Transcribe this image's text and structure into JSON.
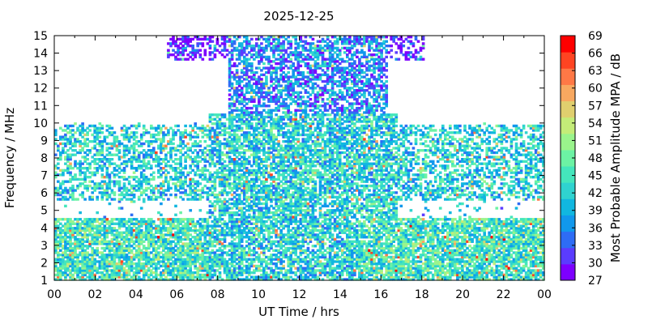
{
  "chart_data": {
    "type": "heatmap",
    "title": "2025-12-25",
    "xlabel": "UT Time / hrs",
    "ylabel": "Frequency / MHz",
    "xlim": [
      0,
      24
    ],
    "ylim": [
      1,
      15
    ],
    "x_ticks": [
      "00",
      "02",
      "04",
      "06",
      "08",
      "10",
      "12",
      "14",
      "16",
      "18",
      "20",
      "22",
      "00"
    ],
    "y_ticks": [
      "1",
      "2",
      "3",
      "4",
      "5",
      "6",
      "7",
      "8",
      "9",
      "10",
      "11",
      "12",
      "13",
      "14",
      "15"
    ],
    "colorbar": {
      "label": "Most Probable Amplitude MPA / dB",
      "range": [
        27,
        69
      ],
      "tick_labels": [
        "27",
        "30",
        "33",
        "36",
        "39",
        "42",
        "45",
        "48",
        "51",
        "54",
        "57",
        "60",
        "63",
        "66",
        "69"
      ],
      "colors": [
        "#7d00ff",
        "#5a3cff",
        "#2e6cf5",
        "#1198ec",
        "#11b7e0",
        "#2fd3d0",
        "#44e6bc",
        "#6cf2a4",
        "#9af48c",
        "#c4ec78",
        "#e0cf6e",
        "#f8a860",
        "#ff7846",
        "#ff4422",
        "#ff0000"
      ]
    },
    "description_regions": {
      "night_band_low": {
        "x": [
          0,
          7.5
        ],
        "y": [
          1,
          4.5
        ],
        "mpa": 45
      },
      "night_band_mid": {
        "x": [
          0,
          7.5
        ],
        "y": [
          5.5,
          9.8
        ],
        "mpa": 42
      },
      "day_fill": {
        "x": [
          7.5,
          16.7
        ],
        "y": [
          1,
          10.5
        ],
        "mpa": 42
      },
      "day_high": {
        "x": [
          8.5,
          16.2
        ],
        "y": [
          10,
          15
        ],
        "mpa": 36
      },
      "day_top": {
        "x": [
          5.5,
          18
        ],
        "y": [
          13.5,
          15
        ],
        "mpa": 28
      },
      "evening_band_low": {
        "x": [
          14.8,
          24
        ],
        "y": [
          1,
          4.5
        ],
        "mpa": 45
      },
      "evening_band_mid": {
        "x": [
          16.5,
          24
        ],
        "y": [
          5.5,
          9.8
        ],
        "mpa": 42
      }
    }
  }
}
